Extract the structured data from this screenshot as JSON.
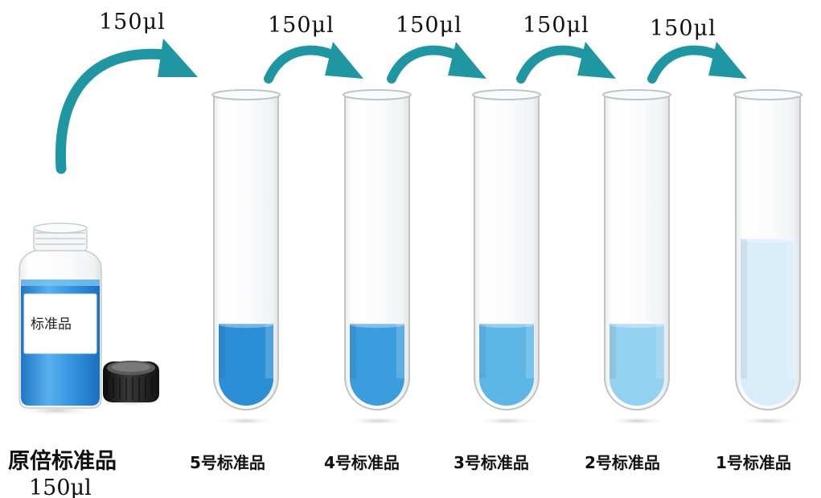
{
  "transfer_volume_labels": [
    "150μl",
    "150μl",
    "150μl",
    "150μl",
    "150μl"
  ],
  "stock_vial": {
    "sticker_text": "标准品",
    "title": "原倍标准品",
    "volume": "150μl"
  },
  "tubes": [
    {
      "label": "5号标准品",
      "liquid_color": "#2b8fd6",
      "fill_level": 0.27
    },
    {
      "label": "4号标准品",
      "liquid_color": "#3b9ddd",
      "fill_level": 0.27
    },
    {
      "label": "3号标准品",
      "liquid_color": "#5cb6e6",
      "fill_level": 0.27
    },
    {
      "label": "2号标准品",
      "liquid_color": "#94d0f0",
      "fill_level": 0.27
    },
    {
      "label": "1号标准品",
      "liquid_color": "#d8ecfa",
      "fill_level": 0.55
    }
  ],
  "colors": {
    "arrow": "#1f97a3",
    "glass_edge": "#bfc4c6",
    "vial_cap": "#1a1a1a",
    "vial_liquid": "#2f8fdd"
  }
}
